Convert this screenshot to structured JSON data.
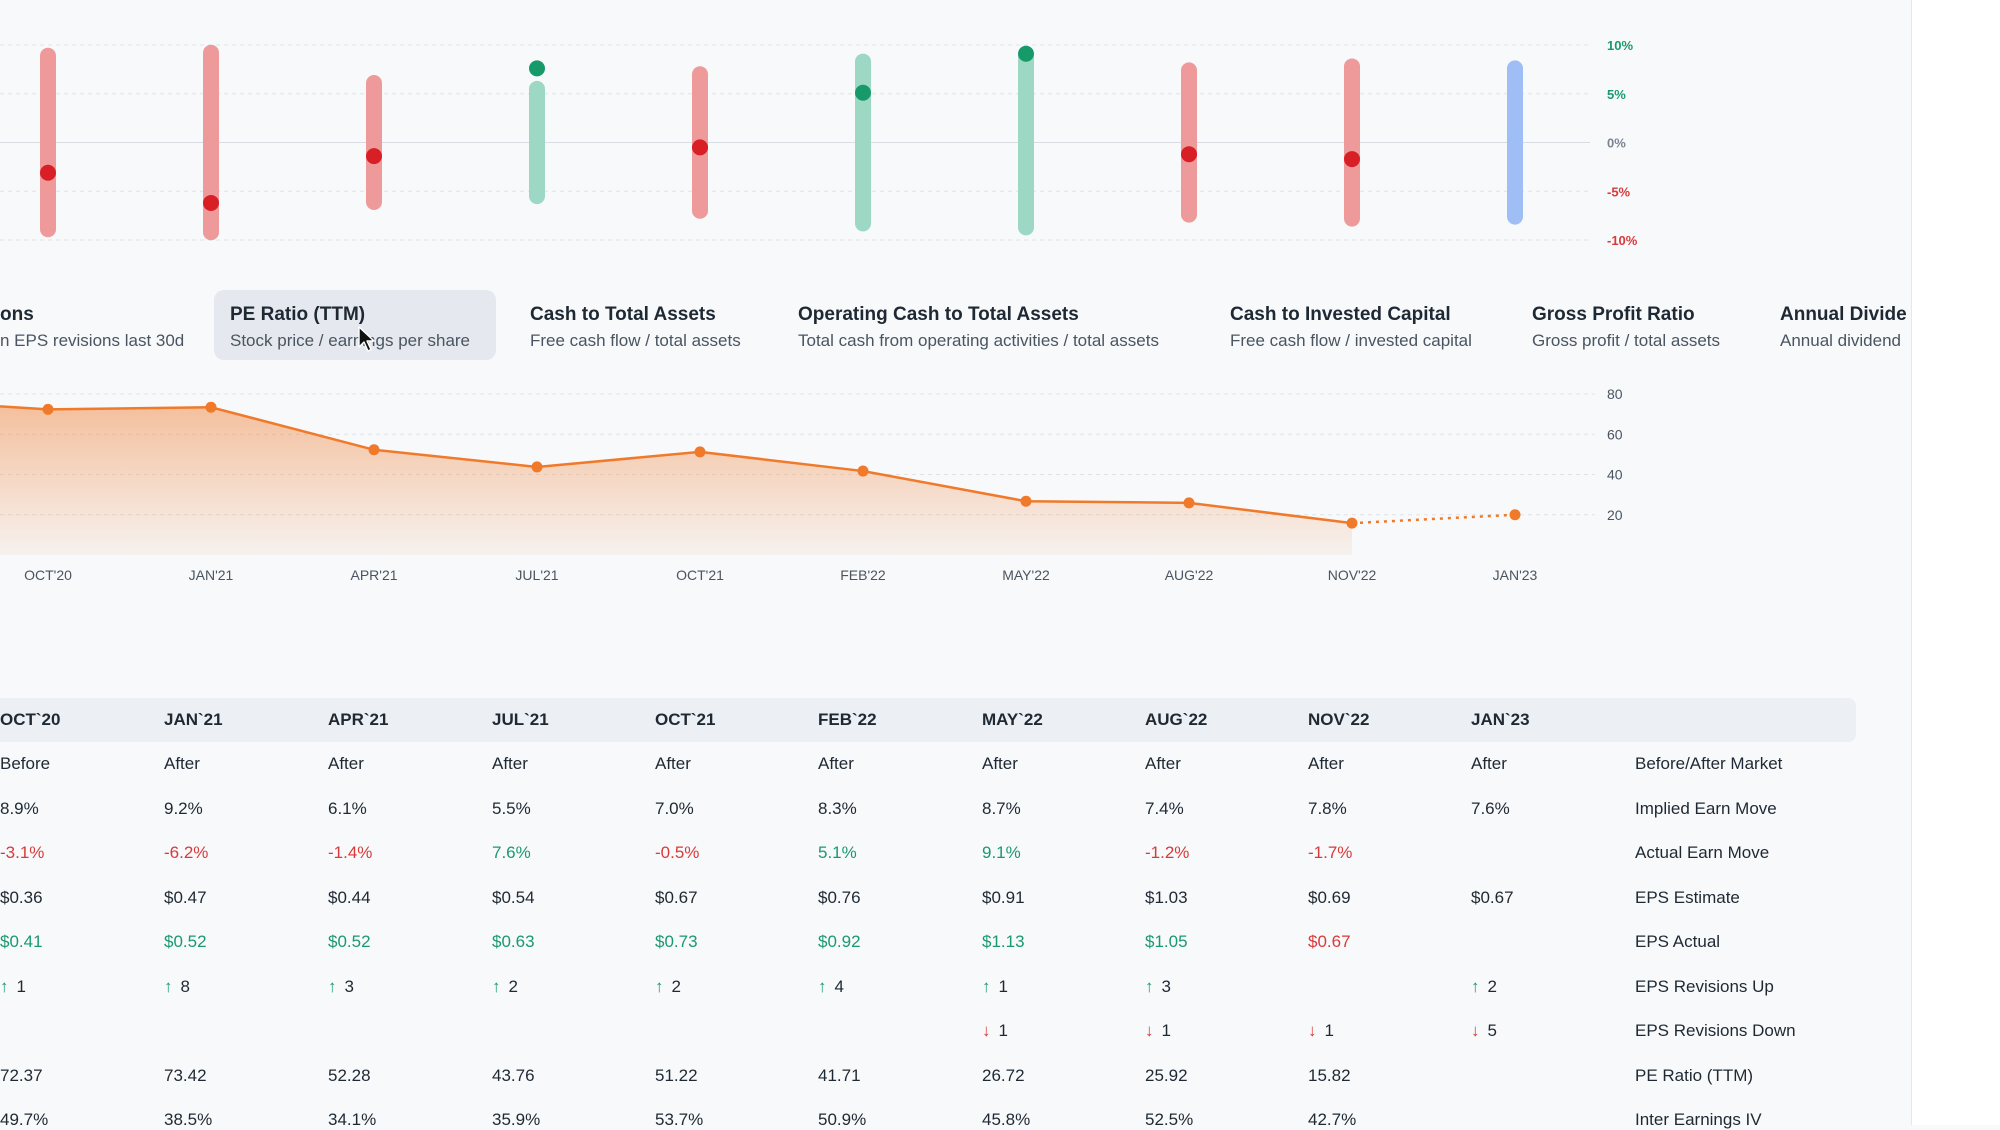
{
  "chart_data": [
    {
      "type": "range-dot",
      "title": "",
      "y_tick_labels": [
        "10%",
        "5%",
        "0%",
        "-5%",
        "-10%"
      ],
      "ylim": [
        -10,
        10
      ],
      "categories": [
        "OCT`20",
        "JAN`21",
        "APR`21",
        "JUL`21",
        "OCT`21",
        "FEB`22",
        "MAY`22",
        "AUG`22",
        "NOV`22",
        "JAN`23"
      ],
      "implied_move": [
        8.9,
        9.2,
        6.1,
        5.5,
        7.0,
        8.3,
        8.7,
        7.4,
        7.8,
        7.6
      ],
      "actual_move": [
        -3.1,
        -6.2,
        -1.4,
        7.6,
        -0.5,
        5.1,
        9.1,
        -1.2,
        -1.7,
        null
      ],
      "colors": {
        "negative": "#ef9a9a",
        "positive": "#9dd8c4",
        "pending": "#9fbef5",
        "dot_negative": "#d81f26",
        "dot_positive": "#169a6a"
      }
    },
    {
      "type": "area",
      "title": "",
      "series": [
        {
          "name": "",
          "values": [
            72.37,
            73.42,
            52.28,
            43.76,
            51.22,
            41.71,
            26.72,
            25.92,
            15.82,
            20
          ]
        }
      ],
      "x": [
        "OCT`20",
        "JAN`21",
        "APR`21",
        "JUL`21",
        "OCT`21",
        "FEB`22",
        "MAY`22",
        "AUG`22",
        "NOV`22",
        "JAN`23"
      ],
      "x_tick_labels": [
        "OCT'20",
        "JAN'21",
        "APR'21",
        "JUL'21",
        "OCT'21",
        "FEB'22",
        "MAY'22",
        "AUG'22",
        "NOV'22",
        "JAN'23"
      ],
      "y_ticks": [
        80,
        60,
        40,
        20
      ],
      "ylim": [
        0,
        86
      ],
      "projected_last": true,
      "grid": true,
      "color": "#f07a2a"
    }
  ],
  "metric_tabs": [
    {
      "title": "ons",
      "subtitle": "n EPS revisions last 30d",
      "active": false
    },
    {
      "title": "PE Ratio (TTM)",
      "subtitle": "Stock price / earnings per share",
      "active": true
    },
    {
      "title": "Cash to Total Assets",
      "subtitle": "Free cash flow / total assets",
      "active": false
    },
    {
      "title": "Operating Cash to Total Assets",
      "subtitle": "Total cash from operating activities / total assets",
      "active": false
    },
    {
      "title": "Cash to Invested Capital",
      "subtitle": "Free cash flow / invested capital",
      "active": false
    },
    {
      "title": "Gross Profit Ratio",
      "subtitle": "Gross profit / total assets",
      "active": false
    },
    {
      "title": "Annual Divide",
      "subtitle": "Annual dividend",
      "active": false
    }
  ],
  "table": {
    "columns": [
      "OCT`20",
      "JAN`21",
      "APR`21",
      "JUL`21",
      "OCT`21",
      "FEB`22",
      "MAY`22",
      "AUG`22",
      "NOV`22",
      "JAN`23"
    ],
    "rows": [
      {
        "label": "Before/After Market",
        "cells": [
          "Before",
          "After",
          "After",
          "After",
          "After",
          "After",
          "After",
          "After",
          "After",
          "After"
        ]
      },
      {
        "label": "Implied Earn Move",
        "cells": [
          "8.9%",
          "9.2%",
          "6.1%",
          "5.5%",
          "7.0%",
          "8.3%",
          "8.7%",
          "7.4%",
          "7.8%",
          "7.6%"
        ]
      },
      {
        "label": "Actual Earn Move",
        "tone": [
          "neg",
          "neg",
          "neg",
          "pos",
          "neg",
          "pos",
          "pos",
          "neg",
          "neg",
          ""
        ],
        "cells": [
          "-3.1%",
          "-6.2%",
          "-1.4%",
          "7.6%",
          "-0.5%",
          "5.1%",
          "9.1%",
          "-1.2%",
          "-1.7%",
          ""
        ]
      },
      {
        "label": "EPS Estimate",
        "cells": [
          "$0.36",
          "$0.47",
          "$0.44",
          "$0.54",
          "$0.67",
          "$0.76",
          "$0.91",
          "$1.03",
          "$0.69",
          "$0.67"
        ]
      },
      {
        "label": "EPS Actual",
        "tone": [
          "pos",
          "pos",
          "pos",
          "pos",
          "pos",
          "pos",
          "pos",
          "pos",
          "neg",
          ""
        ],
        "cells": [
          "$0.41",
          "$0.52",
          "$0.52",
          "$0.63",
          "$0.73",
          "$0.92",
          "$1.13",
          "$1.05",
          "$0.67",
          ""
        ]
      },
      {
        "label": "EPS Revisions Up",
        "arrow": "up",
        "cells": [
          "1",
          "8",
          "3",
          "2",
          "2",
          "4",
          "1",
          "3",
          "",
          "2"
        ]
      },
      {
        "label": "EPS Revisions Down",
        "arrow": "down",
        "cells": [
          "",
          "",
          "",
          "",
          "",
          "",
          "1",
          "1",
          "1",
          "5"
        ]
      },
      {
        "label": "PE Ratio (TTM)",
        "cells": [
          "72.37",
          "73.42",
          "52.28",
          "43.76",
          "51.22",
          "41.71",
          "26.72",
          "25.92",
          "15.82",
          ""
        ]
      },
      {
        "label": "Inter Earnings IV",
        "cells": [
          "49.7%",
          "38.5%",
          "34.1%",
          "35.9%",
          "53.7%",
          "50.9%",
          "45.8%",
          "52.5%",
          "42.7%",
          ""
        ]
      }
    ]
  }
}
